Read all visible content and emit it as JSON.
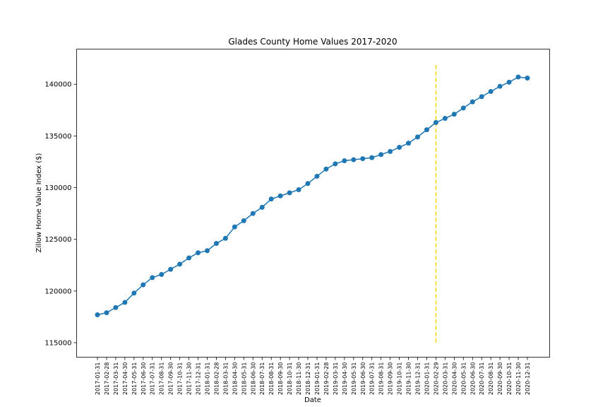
{
  "chart_data": {
    "type": "line",
    "title": "Glades County Home Values 2017-2020",
    "xlabel": "Date",
    "ylabel": "Zillow Home Value Index ($)",
    "ylim": [
      113600,
      143400
    ],
    "yticks": [
      115000,
      120000,
      125000,
      130000,
      135000,
      140000
    ],
    "grid": false,
    "categories": [
      "2017-01-31",
      "2017-02-28",
      "2017-03-31",
      "2017-04-30",
      "2017-05-31",
      "2017-06-30",
      "2017-07-31",
      "2017-08-31",
      "2017-09-30",
      "2017-10-31",
      "2017-11-30",
      "2017-12-31",
      "2018-01-31",
      "2018-02-28",
      "2018-03-31",
      "2018-04-30",
      "2018-05-31",
      "2018-06-30",
      "2018-07-31",
      "2018-08-31",
      "2018-09-30",
      "2018-10-31",
      "2018-11-30",
      "2018-12-31",
      "2019-01-31",
      "2019-02-28",
      "2019-03-31",
      "2019-04-30",
      "2019-05-31",
      "2019-06-30",
      "2019-07-31",
      "2019-08-31",
      "2019-09-30",
      "2019-10-31",
      "2019-11-30",
      "2019-12-31",
      "2020-01-31",
      "2020-02-29",
      "2020-03-31",
      "2020-04-30",
      "2020-05-31",
      "2020-06-30",
      "2020-07-31",
      "2020-08-31",
      "2020-09-30",
      "2020-10-31",
      "2020-11-30",
      "2020-12-31"
    ],
    "series": [
      {
        "color": "#1f77b4",
        "marker": "circle",
        "values": [
          117700,
          117900,
          118400,
          118900,
          119800,
          120600,
          121300,
          121600,
          122100,
          122600,
          123200,
          123700,
          123900,
          124600,
          125100,
          126200,
          126800,
          127500,
          128100,
          128900,
          129200,
          129500,
          129800,
          130400,
          131100,
          131800,
          132300,
          132600,
          132700,
          132800,
          132900,
          133200,
          133500,
          133900,
          134300,
          134900,
          135600,
          136300,
          136700,
          137100,
          137700,
          138300,
          138800,
          139300,
          139800,
          140200,
          140700,
          140600
        ]
      }
    ],
    "reference_line": {
      "x": "2020-02-29",
      "y_range": [
        115000,
        142000
      ],
      "color": "#FFD700",
      "style": "dashed"
    }
  }
}
